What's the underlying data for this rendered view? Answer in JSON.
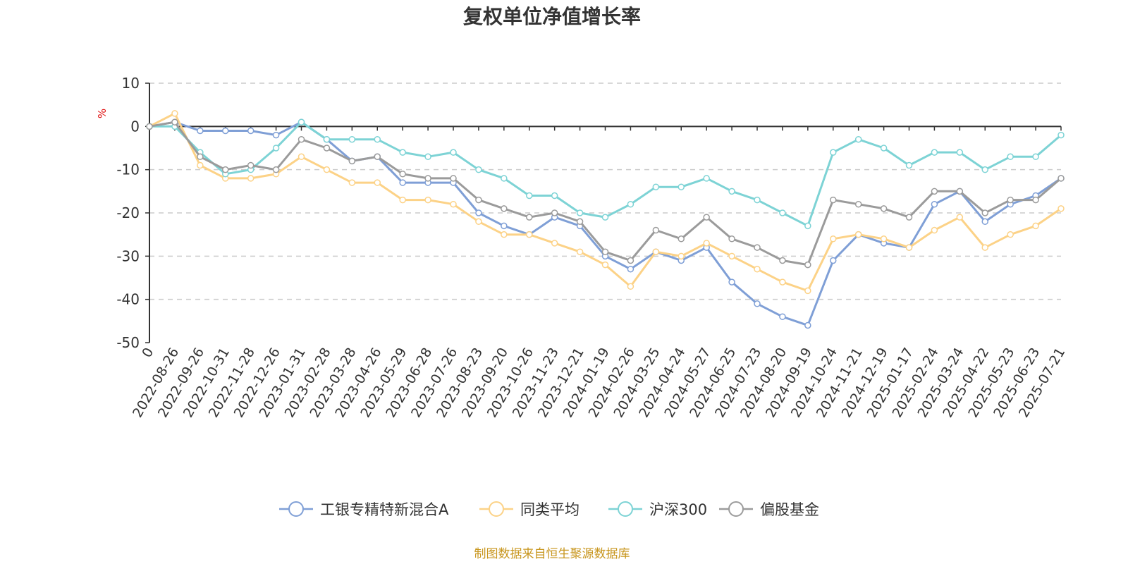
{
  "chart_data": {
    "type": "line",
    "title": "复权单位净值增长率",
    "ylabel": "%",
    "ylim": [
      -50,
      10
    ],
    "yticks": [
      10,
      0,
      -10,
      -20,
      -30,
      -40,
      -50
    ],
    "grid": true,
    "legend_position": "bottom",
    "source_note": "制图数据来自恒生聚源数据库",
    "x": [
      "0",
      "2022-08-26",
      "2022-09-26",
      "2022-10-31",
      "2022-11-28",
      "2022-12-26",
      "2023-01-31",
      "2023-02-28",
      "2023-03-28",
      "2023-04-26",
      "2023-05-29",
      "2023-06-28",
      "2023-07-26",
      "2023-08-23",
      "2023-09-20",
      "2023-10-26",
      "2023-11-23",
      "2023-12-21",
      "2024-01-19",
      "2024-02-26",
      "2024-03-25",
      "2024-04-24",
      "2024-05-27",
      "2024-06-25",
      "2024-07-23",
      "2024-08-20",
      "2024-09-19",
      "2024-10-24",
      "2024-11-21",
      "2024-12-19",
      "2025-01-17",
      "2025-02-24",
      "2025-03-24",
      "2025-04-22",
      "2025-05-23",
      "2025-06-23",
      "2025-07-21"
    ],
    "series": [
      {
        "name": "工银专精特新混合A",
        "color": "#7f9fd6",
        "values": [
          0,
          1,
          -1,
          -1,
          -1,
          -2,
          1,
          -3,
          -8,
          -7,
          -13,
          -13,
          -13,
          -20,
          -23,
          -25,
          -21,
          -23,
          -30,
          -33,
          -29,
          -31,
          -28,
          -36,
          -41,
          -44,
          -46,
          -31,
          -25,
          -27,
          -28,
          -18,
          -15,
          -22,
          -18,
          -16,
          -12
        ]
      },
      {
        "name": "同类平均",
        "color": "#fcd287",
        "values": [
          0,
          3,
          -9,
          -12,
          -12,
          -11,
          -7,
          -10,
          -13,
          -13,
          -17,
          -17,
          -18,
          -22,
          -25,
          -25,
          -27,
          -29,
          -32,
          -37,
          -29,
          -30,
          -27,
          -30,
          -33,
          -36,
          -38,
          -26,
          -25,
          -26,
          -28,
          -24,
          -21,
          -28,
          -25,
          -23,
          -19
        ]
      },
      {
        "name": "沪深300",
        "color": "#7dd3d5",
        "values": [
          0,
          0,
          -6,
          -11,
          -10,
          -5,
          1,
          -3,
          -3,
          -3,
          -6,
          -7,
          -6,
          -10,
          -12,
          -16,
          -16,
          -20,
          -21,
          -18,
          -14,
          -14,
          -12,
          -15,
          -17,
          -20,
          -23,
          -6,
          -3,
          -5,
          -9,
          -6,
          -6,
          -10,
          -7,
          -7,
          -2
        ]
      },
      {
        "name": "偏股基金",
        "color": "#9b9b9b",
        "values": [
          0,
          1,
          -7,
          -10,
          -9,
          -10,
          -3,
          -5,
          -8,
          -7,
          -11,
          -12,
          -12,
          -17,
          -19,
          -21,
          -20,
          -22,
          -29,
          -31,
          -24,
          -26,
          -21,
          -26,
          -28,
          -31,
          -32,
          -17,
          -18,
          -19,
          -21,
          -15,
          -15,
          -20,
          -17,
          -17,
          -12
        ]
      }
    ]
  }
}
